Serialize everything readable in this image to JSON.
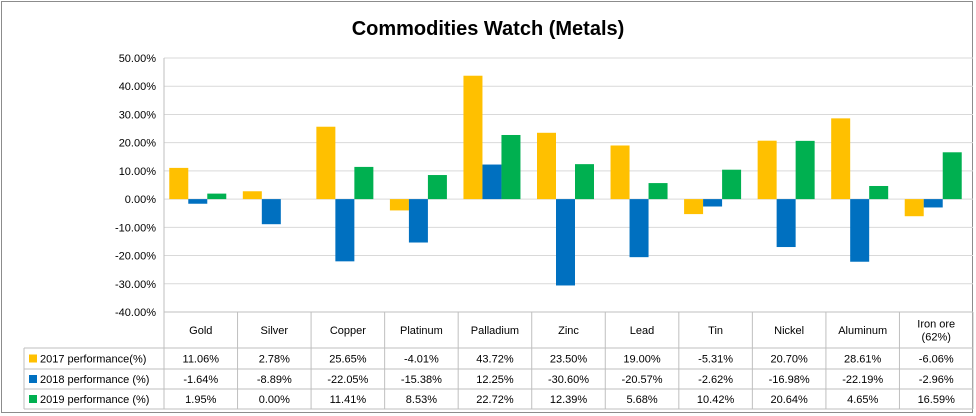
{
  "chart_data": {
    "type": "bar",
    "title": "Commodities Watch (Metals)",
    "categories": [
      "Gold",
      "Silver",
      "Copper",
      "Platinum",
      "Palladium",
      "Zinc",
      "Lead",
      "Tin",
      "Nickel",
      "Aluminum",
      "Iron ore (62%)"
    ],
    "category_lines": [
      [
        "Gold"
      ],
      [
        "Silver"
      ],
      [
        "Copper"
      ],
      [
        "Platinum"
      ],
      [
        "Palladium"
      ],
      [
        "Zinc"
      ],
      [
        "Lead"
      ],
      [
        "Tin"
      ],
      [
        "Nickel"
      ],
      [
        "Aluminum"
      ],
      [
        "Iron ore",
        "(62%)"
      ]
    ],
    "series": [
      {
        "name": "2017 performance(%)",
        "color": "#FFC000",
        "values": [
          11.06,
          2.78,
          25.65,
          -4.01,
          43.72,
          23.5,
          19.0,
          -5.31,
          20.7,
          28.61,
          -6.06
        ],
        "labels": [
          "11.06%",
          "2.78%",
          "25.65%",
          "-4.01%",
          "43.72%",
          "23.50%",
          "19.00%",
          "-5.31%",
          "20.70%",
          "28.61%",
          "-6.06%"
        ]
      },
      {
        "name": "2018 performance (%)",
        "color": "#0070C0",
        "values": [
          -1.64,
          -8.89,
          -22.05,
          -15.38,
          12.25,
          -30.6,
          -20.57,
          -2.62,
          -16.98,
          -22.19,
          -2.96
        ],
        "labels": [
          "-1.64%",
          "-8.89%",
          "-22.05%",
          "-15.38%",
          "12.25%",
          "-30.60%",
          "-20.57%",
          "-2.62%",
          "-16.98%",
          "-22.19%",
          "-2.96%"
        ]
      },
      {
        "name": "2019 performance (%)",
        "color": "#00B050",
        "values": [
          1.95,
          0.0,
          11.41,
          8.53,
          22.72,
          12.39,
          5.68,
          10.42,
          20.64,
          4.65,
          16.59
        ],
        "labels": [
          "1.95%",
          "0.00%",
          "11.41%",
          "8.53%",
          "22.72%",
          "12.39%",
          "5.68%",
          "10.42%",
          "20.64%",
          "4.65%",
          "16.59%"
        ]
      }
    ],
    "ylim": [
      -40,
      50
    ],
    "yticks": [
      50,
      40,
      30,
      20,
      10,
      0,
      -10,
      -20,
      -30,
      -40
    ],
    "ytick_labels": [
      "50.00%",
      "40.00%",
      "30.00%",
      "20.00%",
      "10.00%",
      "0.00%",
      "-10.00%",
      "-20.00%",
      "-30.00%",
      "-40.00%"
    ],
    "grid": true,
    "legend": "data-table"
  }
}
